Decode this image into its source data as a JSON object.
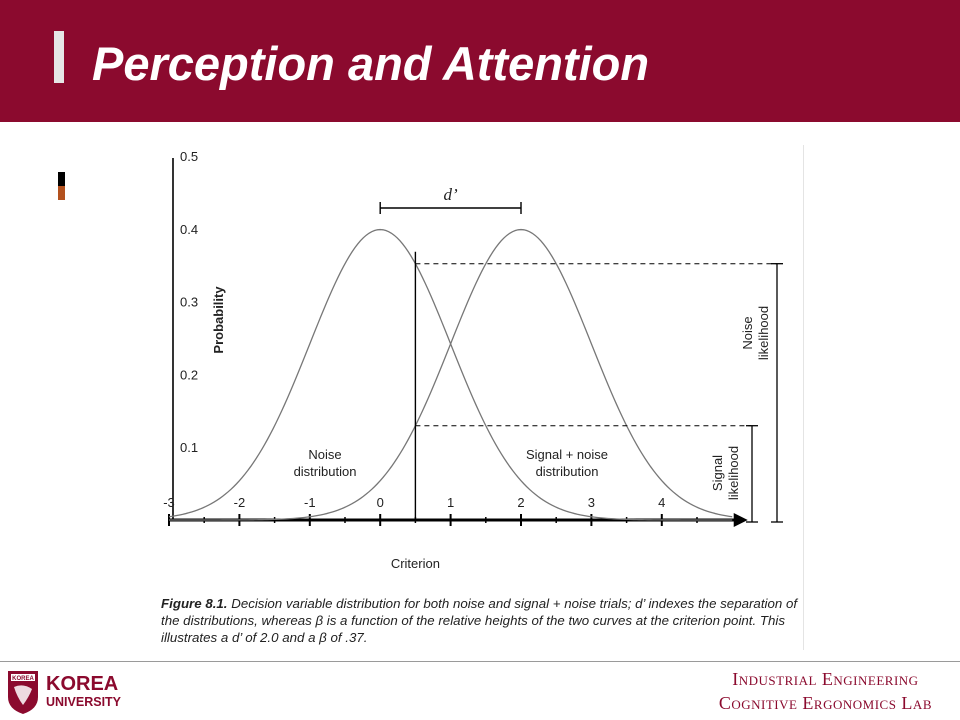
{
  "slide": {
    "title": "Perception and Attention",
    "accent_color": "#8b0a2e"
  },
  "caption": {
    "label": "Figure 8.1.",
    "text": " Decision variable distribution for both noise and signal + noise trials; d’ indexes the separation of the distributions, whereas β is a function of the relative heights of the two curves at the criterion point. This illustrates a d’ of 2.0 and a β of .37."
  },
  "footer": {
    "logo_line1": "KOREA",
    "logo_line2": "UNIVERSITY",
    "seal_text": "KOREA",
    "line1": "Industrial Engineering",
    "line2": "Cognitive Ergonomics Lab"
  },
  "chart_data": {
    "type": "line",
    "ylabel": "Probability",
    "xlim": [
      -3,
      5
    ],
    "ylim": [
      0,
      0.5
    ],
    "xticks": [
      "-3",
      "-2",
      "-1",
      "0",
      "1",
      "2",
      "3",
      "4"
    ],
    "yticks": [
      "0.5",
      "0.4",
      "0.3",
      "0.2",
      "0.1"
    ],
    "series": [
      {
        "name": "Noise distribution",
        "mean": 0,
        "sd": 1
      },
      {
        "name": "Signal + noise distribution",
        "mean": 2,
        "sd": 1
      }
    ],
    "criterion": {
      "label": "Criterion",
      "x": 0.5
    },
    "annotations": {
      "dprime": "d’",
      "noise_likelihood": [
        "Noise",
        "likelihood"
      ],
      "signal_likelihood": [
        "Signal",
        "likelihood"
      ],
      "noise_label": [
        "Noise",
        "distribution"
      ],
      "signal_label": [
        "Signal + noise",
        "distribution"
      ]
    },
    "colors": {
      "curve": "#777777",
      "axis": "#000000"
    }
  }
}
